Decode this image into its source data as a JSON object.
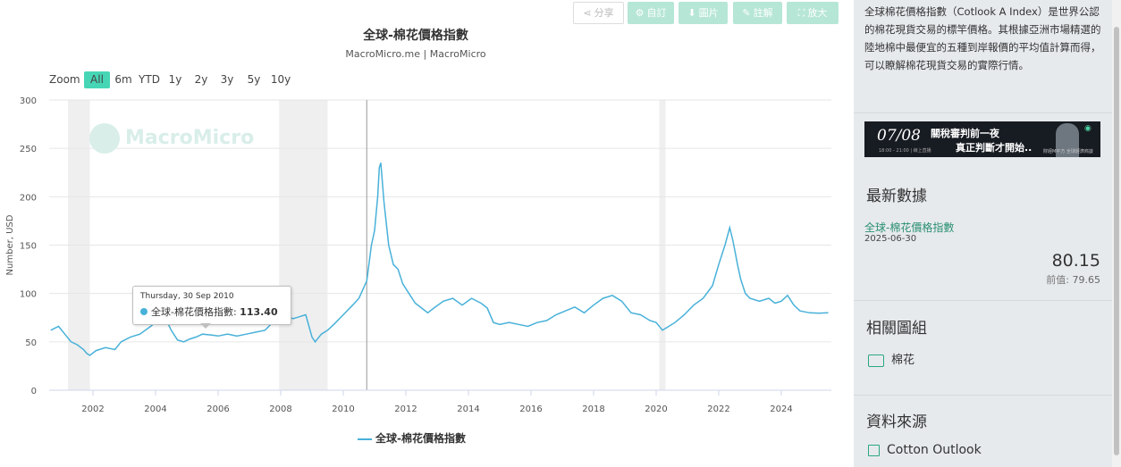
{
  "toolbar": {
    "share_label": "分享",
    "custom_label": "自訂",
    "image_label": "圖片",
    "annotate_label": "註解",
    "zoom_label": "放大"
  },
  "range_selector": {
    "zoom_label": "Zoom",
    "options": [
      "All",
      "6m",
      "YTD",
      "1y",
      "2y",
      "3y",
      "5y",
      "10y"
    ],
    "active": "All"
  },
  "watermark": "MacroMicro",
  "tooltip": {
    "date": "Thursday, 30 Sep 2010",
    "series": "全球-棉花價格指數",
    "value": "113.40"
  },
  "chart_data": {
    "type": "line",
    "title": "全球-棉花價格指數",
    "subtitle": "MacroMicro.me | MacroMicro",
    "xlabel": "",
    "ylabel": "Number, USD",
    "ylim": [
      0,
      300
    ],
    "xlim": [
      2000.6,
      2025.6
    ],
    "yticks": [
      0,
      50,
      100,
      150,
      200,
      250,
      300
    ],
    "xticks": [
      "2002",
      "2004",
      "2006",
      "2008",
      "2010",
      "2012",
      "2014",
      "2016",
      "2018",
      "2020",
      "2022",
      "2024"
    ],
    "grid": true,
    "legend_position": "bottom",
    "recession_bands": [
      [
        2001.2,
        2001.9
      ],
      [
        2007.95,
        2009.5
      ],
      [
        2020.1,
        2020.3
      ]
    ],
    "series": [
      {
        "name": "全球-棉花價格指數",
        "color": "#48b1d9",
        "x": [
          2000.65,
          2000.9,
          2001.1,
          2001.3,
          2001.5,
          2001.7,
          2001.8,
          2001.9,
          2002.1,
          2002.4,
          2002.7,
          2002.9,
          2003.2,
          2003.5,
          2003.8,
          2004.0,
          2004.2,
          2004.35,
          2004.5,
          2004.7,
          2004.9,
          2005.1,
          2005.3,
          2005.5,
          2005.8,
          2006.0,
          2006.3,
          2006.6,
          2006.9,
          2007.2,
          2007.5,
          2007.8,
          2008.0,
          2008.2,
          2008.4,
          2008.6,
          2008.8,
          2009.0,
          2009.1,
          2009.3,
          2009.5,
          2009.7,
          2010.0,
          2010.3,
          2010.5,
          2010.75,
          2010.9,
          2011.0,
          2011.1,
          2011.15,
          2011.2,
          2011.3,
          2011.45,
          2011.6,
          2011.75,
          2011.9,
          2012.1,
          2012.3,
          2012.5,
          2012.7,
          2012.9,
          2013.2,
          2013.5,
          2013.8,
          2014.1,
          2014.4,
          2014.6,
          2014.8,
          2015.0,
          2015.3,
          2015.6,
          2015.9,
          2016.2,
          2016.5,
          2016.8,
          2017.1,
          2017.4,
          2017.7,
          2018.0,
          2018.3,
          2018.6,
          2018.9,
          2019.2,
          2019.5,
          2019.8,
          2020.0,
          2020.2,
          2020.35,
          2020.6,
          2020.9,
          2021.2,
          2021.5,
          2021.8,
          2022.0,
          2022.2,
          2022.35,
          2022.45,
          2022.6,
          2022.7,
          2022.85,
          2023.0,
          2023.3,
          2023.6,
          2023.8,
          2024.0,
          2024.2,
          2024.4,
          2024.6,
          2024.9,
          2025.2,
          2025.5
        ],
        "y": [
          62,
          66,
          58,
          50,
          47,
          42,
          38,
          36,
          41,
          44,
          42,
          50,
          55,
          58,
          65,
          70,
          75,
          72,
          62,
          52,
          50,
          53,
          55,
          58,
          57,
          56,
          58,
          56,
          58,
          60,
          62,
          72,
          78,
          76,
          74,
          76,
          78,
          55,
          50,
          58,
          62,
          68,
          78,
          88,
          95,
          113,
          150,
          165,
          200,
          230,
          235,
          195,
          150,
          130,
          125,
          110,
          100,
          90,
          85,
          80,
          85,
          92,
          95,
          88,
          95,
          90,
          85,
          70,
          68,
          70,
          68,
          66,
          70,
          72,
          78,
          82,
          86,
          80,
          88,
          95,
          98,
          92,
          80,
          78,
          72,
          70,
          62,
          65,
          70,
          78,
          88,
          95,
          108,
          130,
          150,
          168,
          155,
          130,
          115,
          100,
          95,
          92,
          95,
          90,
          92,
          98,
          88,
          82,
          80,
          79.65,
          80.15
        ]
      }
    ]
  },
  "sidebar": {
    "description": "全球棉花價格指數（Cotlook A Index）是世界公認的棉花現貨交易的標竿價格。其根據亞洲市場精選的陸地棉中最便宜的五種到岸報價的平均值計算而得，可以瞭解棉花現貨交易的實際行情。",
    "ad": {
      "date": "07/08",
      "line1": "關稅審判前一夜",
      "line2": "真正判斷才開始..",
      "sub": "18:00 - 21:00 | 線上直播",
      "brand": "財經M平方 全球經濟商談"
    },
    "latest_heading": "最新數據",
    "latest_series": "全球-棉花價格指數",
    "latest_date": "2025-06-30",
    "latest_value": "80.15",
    "prev_label": "前值:",
    "prev_value": "79.65",
    "related_heading": "相關圖組",
    "related_item": "棉花",
    "source_heading": "資料來源",
    "source_item": "Cotton Outlook"
  }
}
